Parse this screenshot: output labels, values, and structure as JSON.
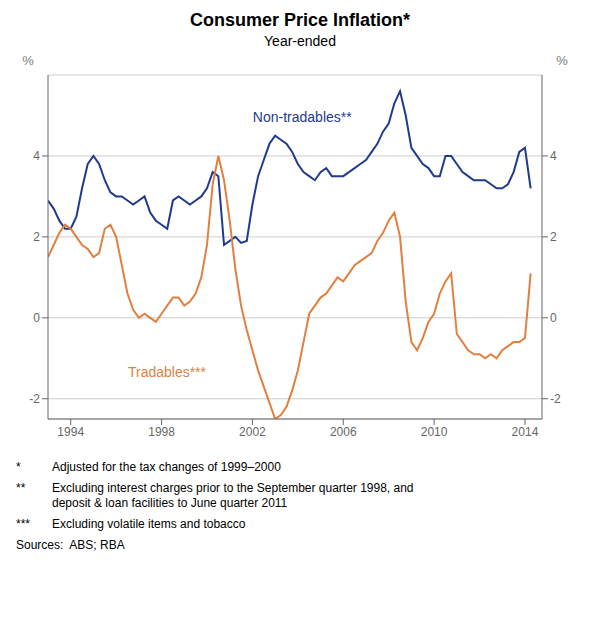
{
  "chart_data": {
    "type": "line",
    "title": "Consumer Price Inflation*",
    "subtitle": "Year-ended",
    "y_label": "%",
    "y2_label": "%",
    "x": [
      1993.0,
      1993.25,
      1993.5,
      1993.75,
      1994.0,
      1994.25,
      1994.5,
      1994.75,
      1995.0,
      1995.25,
      1995.5,
      1995.75,
      1996.0,
      1996.25,
      1996.5,
      1996.75,
      1997.0,
      1997.25,
      1997.5,
      1997.75,
      1998.0,
      1998.25,
      1998.5,
      1998.75,
      1999.0,
      1999.25,
      1999.5,
      1999.75,
      2000.0,
      2000.25,
      2000.5,
      2000.75,
      2001.0,
      2001.25,
      2001.5,
      2001.75,
      2002.0,
      2002.25,
      2002.5,
      2002.75,
      2003.0,
      2003.25,
      2003.5,
      2003.75,
      2004.0,
      2004.25,
      2004.5,
      2004.75,
      2005.0,
      2005.25,
      2005.5,
      2005.75,
      2006.0,
      2006.25,
      2006.5,
      2006.75,
      2007.0,
      2007.25,
      2007.5,
      2007.75,
      2008.0,
      2008.25,
      2008.5,
      2008.75,
      2009.0,
      2009.25,
      2009.5,
      2009.75,
      2010.0,
      2010.25,
      2010.5,
      2010.75,
      2011.0,
      2011.25,
      2011.5,
      2011.75,
      2012.0,
      2012.25,
      2012.5,
      2012.75,
      2013.0,
      2013.25,
      2013.5,
      2013.75,
      2014.0,
      2014.25
    ],
    "series": [
      {
        "name": "Non-tradables**",
        "color": "#1f3a8f",
        "values": [
          2.9,
          2.7,
          2.4,
          2.2,
          2.2,
          2.5,
          3.2,
          3.8,
          4.0,
          3.8,
          3.4,
          3.1,
          3.0,
          3.0,
          2.9,
          2.8,
          2.9,
          3.0,
          2.6,
          2.4,
          2.3,
          2.2,
          2.9,
          3.0,
          2.9,
          2.8,
          2.9,
          3.0,
          3.2,
          3.6,
          3.5,
          1.8,
          1.9,
          2.0,
          1.85,
          1.9,
          2.8,
          3.5,
          3.9,
          4.3,
          4.5,
          4.4,
          4.3,
          4.1,
          3.8,
          3.6,
          3.5,
          3.4,
          3.6,
          3.7,
          3.5,
          3.5,
          3.5,
          3.6,
          3.7,
          3.8,
          3.9,
          4.1,
          4.3,
          4.6,
          4.8,
          5.3,
          5.6,
          5.0,
          4.2,
          4.0,
          3.8,
          3.7,
          3.5,
          3.5,
          4.0,
          4.0,
          3.8,
          3.6,
          3.5,
          3.4,
          3.4,
          3.4,
          3.3,
          3.2,
          3.2,
          3.3,
          3.6,
          4.1,
          4.2,
          3.2
        ]
      },
      {
        "name": "Tradables***",
        "color": "#e08040",
        "values": [
          1.5,
          1.8,
          2.1,
          2.3,
          2.2,
          2.0,
          1.8,
          1.7,
          1.5,
          1.6,
          2.2,
          2.3,
          2.0,
          1.3,
          0.6,
          0.2,
          0.0,
          0.1,
          0.0,
          -0.1,
          0.1,
          0.3,
          0.5,
          0.5,
          0.3,
          0.4,
          0.6,
          1.0,
          1.8,
          3.3,
          4.0,
          3.4,
          2.4,
          1.2,
          0.3,
          -0.3,
          -0.8,
          -1.3,
          -1.7,
          -2.1,
          -2.5,
          -2.4,
          -2.2,
          -1.8,
          -1.3,
          -0.6,
          0.1,
          0.3,
          0.5,
          0.6,
          0.8,
          1.0,
          0.9,
          1.1,
          1.3,
          1.4,
          1.5,
          1.6,
          1.9,
          2.1,
          2.4,
          2.6,
          2.0,
          0.4,
          -0.6,
          -0.8,
          -0.5,
          -0.1,
          0.1,
          0.6,
          0.9,
          1.1,
          -0.4,
          -0.6,
          -0.8,
          -0.9,
          -0.9,
          -1.0,
          -0.9,
          -1.0,
          -0.8,
          -0.7,
          -0.6,
          -0.6,
          -0.5,
          1.1
        ]
      }
    ],
    "xlim": [
      1993.0,
      2014.75
    ],
    "xticks": [
      1994,
      1998,
      2002,
      2006,
      2010,
      2014
    ],
    "ylim": [
      -2.5,
      6.0
    ],
    "yticks": [
      -2,
      0,
      2,
      4
    ],
    "y2lim": [
      -2.5,
      6.0
    ],
    "y2ticks": [
      -2,
      0,
      2,
      4
    ],
    "grid": true,
    "footnotes": [
      {
        "mark": "*",
        "text": "Adjusted for the tax changes of 1999–2000"
      },
      {
        "mark": "**",
        "text": "Excluding interest charges prior to the September quarter 1998, and\ndeposit & loan facilities to June quarter 2011"
      },
      {
        "mark": "***",
        "text": "Excluding volatile items and tobacco"
      }
    ],
    "sources": "Sources:  ABS; RBA"
  }
}
